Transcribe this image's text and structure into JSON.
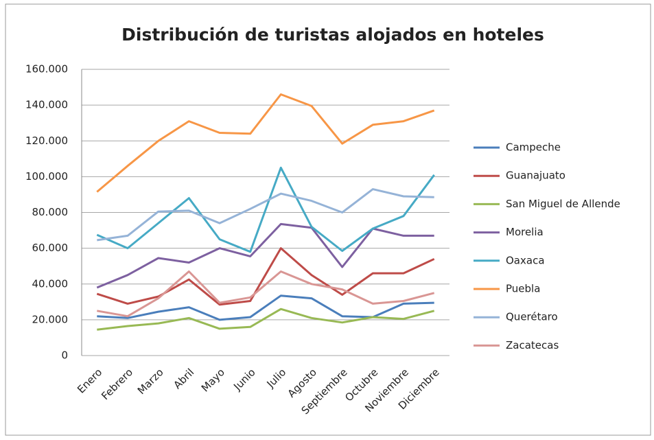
{
  "chart_data": {
    "type": "line",
    "title": "Distribución de turistas alojados en hoteles",
    "categories": [
      "Enero",
      "Febrero",
      "Marzo",
      "Abril",
      "Mayo",
      "Junio",
      "Julio",
      "Agosto",
      "Septiembre",
      "Octubre",
      "Noviembre",
      "Diciembre"
    ],
    "series": [
      {
        "name": "Campeche",
        "color": "#4a7ebb",
        "values": [
          22000,
          21000,
          24500,
          27000,
          20000,
          21500,
          33500,
          32000,
          22000,
          21500,
          29000,
          29500
        ]
      },
      {
        "name": "Guanajuato",
        "color": "#be4b48",
        "values": [
          34500,
          29000,
          33000,
          42500,
          28500,
          30500,
          60000,
          45000,
          34000,
          46000,
          46000,
          54000
        ]
      },
      {
        "name": "San Miguel de Allende",
        "color": "#98b954",
        "values": [
          14500,
          16500,
          18000,
          21000,
          15000,
          16000,
          26000,
          21000,
          18500,
          21500,
          20500,
          25000
        ]
      },
      {
        "name": "Morelia",
        "color": "#7d60a0",
        "values": [
          38000,
          45000,
          54500,
          52000,
          60000,
          55500,
          73500,
          71500,
          49500,
          71000,
          67000,
          67000
        ]
      },
      {
        "name": "Oaxaca",
        "color": "#46aac5",
        "values": [
          67500,
          60000,
          74000,
          88000,
          65000,
          58000,
          105000,
          72000,
          58500,
          71000,
          78000,
          101000
        ]
      },
      {
        "name": "Puebla",
        "color": "#f79646",
        "values": [
          91500,
          106000,
          120000,
          131000,
          124500,
          124000,
          146000,
          139500,
          118500,
          129000,
          131000,
          137000
        ]
      },
      {
        "name": "Querétaro",
        "color": "#95b3d7",
        "values": [
          64500,
          67000,
          80500,
          81000,
          74000,
          82000,
          90500,
          86500,
          80000,
          93000,
          89000,
          88500
        ]
      },
      {
        "name": "Zacatecas",
        "color": "#d99694",
        "values": [
          25000,
          22000,
          32000,
          47000,
          29500,
          32500,
          47000,
          40000,
          37000,
          29000,
          30500,
          35000
        ]
      }
    ],
    "ylim": [
      0,
      160000
    ],
    "yticks": [
      0,
      {
        "value": 20000,
        "label": "20.000"
      },
      {
        "value": 40000,
        "label": "40.000"
      },
      {
        "value": 60000,
        "label": "60.000"
      },
      {
        "value": 80000,
        "label": "80.000"
      },
      {
        "value": 100000,
        "label": "100.000"
      },
      {
        "value": 120000,
        "label": "120.000"
      },
      {
        "value": 140000,
        "label": "140.000"
      },
      {
        "value": 160000,
        "label": "160.000"
      }
    ],
    "grid": true,
    "legend": "right"
  }
}
